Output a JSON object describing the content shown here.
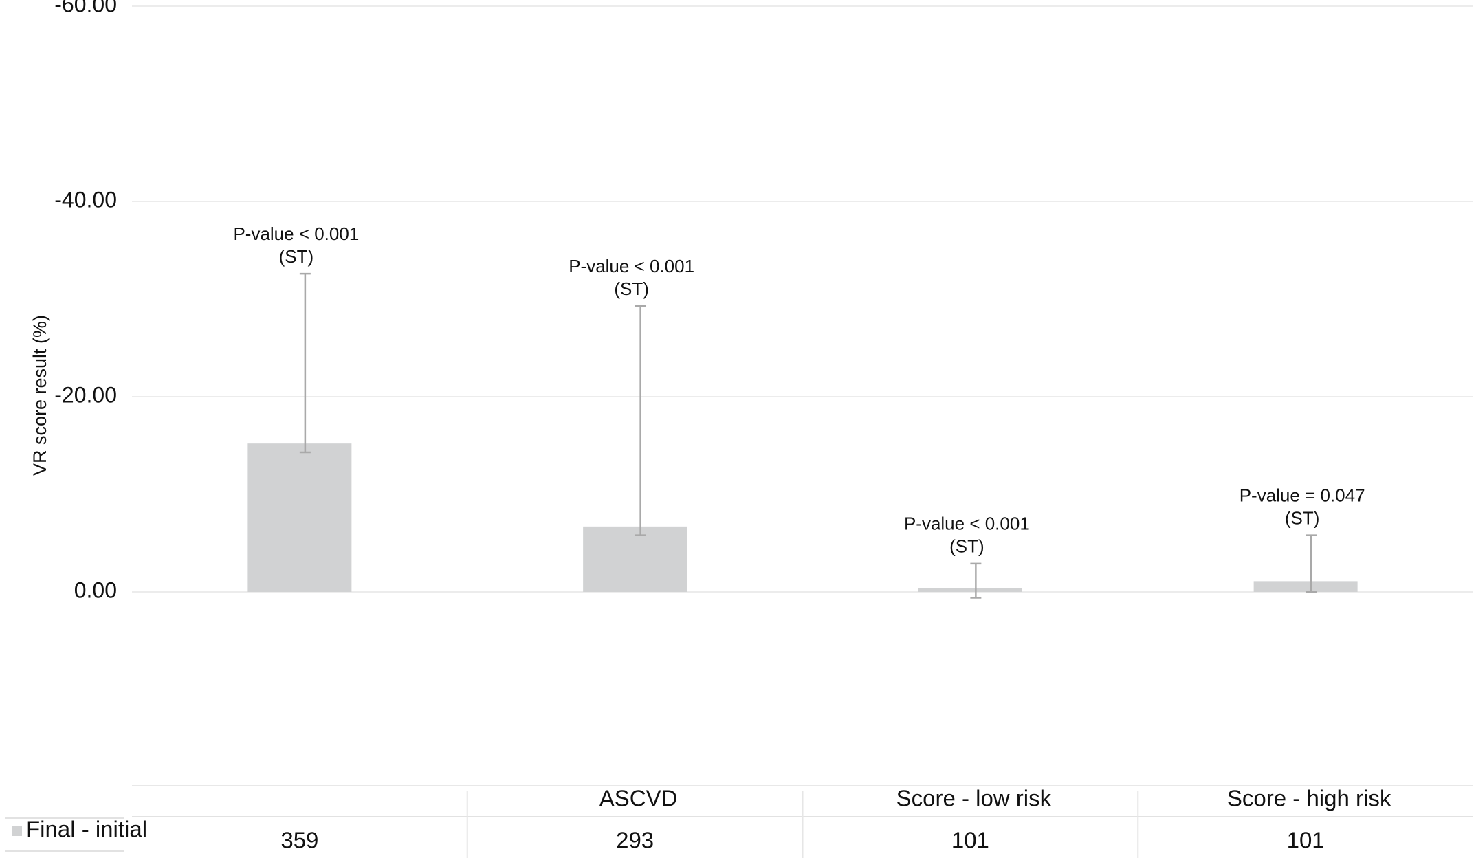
{
  "chart_data": {
    "type": "bar",
    "y_label": "VR score result (%)",
    "categories": [
      null,
      "ASCVD",
      "Score - low risk",
      "Score - high risk"
    ],
    "series": [
      {
        "name": "Final - initial",
        "color": "#d1d2d3",
        "values": [
          -15.2,
          -6.7,
          -0.4,
          -1.1
        ],
        "error_low": [
          -14.3,
          -5.8,
          0.6,
          0
        ],
        "error_high": [
          -32.6,
          -29.3,
          -2.9,
          -5.8
        ]
      }
    ],
    "counts": [
      359,
      293,
      101,
      101
    ],
    "annotations": [
      [
        "P-value < 0.001",
        "(ST)"
      ],
      [
        "P-value < 0.001",
        "(ST)"
      ],
      [
        "P-value < 0.001",
        "(ST)"
      ],
      [
        "P-value = 0.047",
        "(ST)"
      ]
    ],
    "ylim": [
      20,
      -60
    ],
    "yticks": [
      {
        "value": -60,
        "label": "-60.00"
      },
      {
        "value": -40,
        "label": "-40.00"
      },
      {
        "value": -20,
        "label": "-20.00"
      },
      {
        "value": 0,
        "label": "0.00"
      }
    ],
    "grid": true
  }
}
